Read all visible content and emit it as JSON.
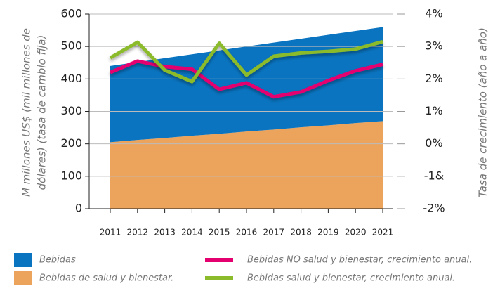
{
  "chart_data": {
    "type": "stacked-area-line",
    "ylabel": [
      "M millones US$ (mil millones de",
      "dólares) (tasa de cambio fija)"
    ],
    "y2label": "Tasa de crecimiento (año a año)",
    "categories": [
      "2011",
      "2012",
      "2013",
      "2014",
      "2015",
      "2016",
      "2017",
      "2018",
      "2019",
      "2020",
      "2021"
    ],
    "series": [
      {
        "name": "Bebidas de salud y bienestar.",
        "kind": "area",
        "color": "#eca35b",
        "values": [
          205,
          212,
          218,
          225,
          231,
          238,
          244,
          251,
          257,
          264,
          270
        ]
      },
      {
        "name": "Bebidas",
        "kind": "area",
        "color": "#0a74c0",
        "values": [
          235,
          240,
          246,
          251,
          257,
          262,
          268,
          273,
          279,
          284,
          290
        ]
      },
      {
        "name": "Bebidas NO salud y bienestar, crecimiento anual.",
        "kind": "line",
        "axis": "y2",
        "color": "#e5006f",
        "values": [
          2.2,
          2.55,
          2.38,
          2.3,
          1.68,
          1.88,
          1.45,
          1.6,
          1.95,
          2.25,
          2.45
        ]
      },
      {
        "name": "Bebidas salud y bienestar, crecimiento anual.",
        "kind": "line",
        "axis": "y2",
        "color": "#8bbb2a",
        "values": [
          2.65,
          3.13,
          2.27,
          1.92,
          3.1,
          2.12,
          2.7,
          2.8,
          2.85,
          2.92,
          3.15
        ]
      }
    ],
    "ylim": [
      0,
      600
    ],
    "yticks": [
      0,
      100,
      200,
      300,
      400,
      500,
      600
    ],
    "y2lim": [
      -2,
      4
    ],
    "y2ticks": [
      {
        "value": -2,
        "label": "-2%"
      },
      {
        "value": -1,
        "label": "-1&"
      },
      {
        "value": 0,
        "label": "0%"
      },
      {
        "value": 1,
        "label": "1%"
      },
      {
        "value": 2,
        "label": "2%"
      },
      {
        "value": 3,
        "label": "3%"
      },
      {
        "value": 4,
        "label": "4%"
      }
    ],
    "grid": true
  }
}
